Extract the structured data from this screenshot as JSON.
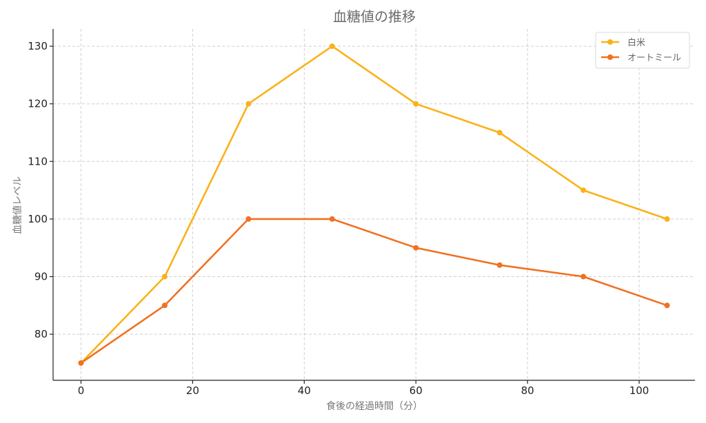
{
  "chart_data": {
    "type": "line",
    "title": "血糖値の推移",
    "xlabel": "食後の経過時間（分）",
    "ylabel": "血糖値レベル",
    "x": [
      0,
      15,
      30,
      45,
      60,
      75,
      90,
      105
    ],
    "xlim": [
      -5,
      110
    ],
    "ylim": [
      72,
      133
    ],
    "xticks": [
      0,
      20,
      40,
      60,
      80,
      100
    ],
    "yticks": [
      80,
      90,
      100,
      110,
      120,
      130
    ],
    "grid": true,
    "legend_position": "top-right",
    "series": [
      {
        "name": "白米",
        "color": "#FBB117",
        "values": [
          75,
          90,
          120,
          130,
          120,
          115,
          105,
          100
        ]
      },
      {
        "name": "オートミール",
        "color": "#F07121",
        "values": [
          75,
          85,
          100,
          100,
          95,
          92,
          90,
          85
        ]
      }
    ]
  }
}
